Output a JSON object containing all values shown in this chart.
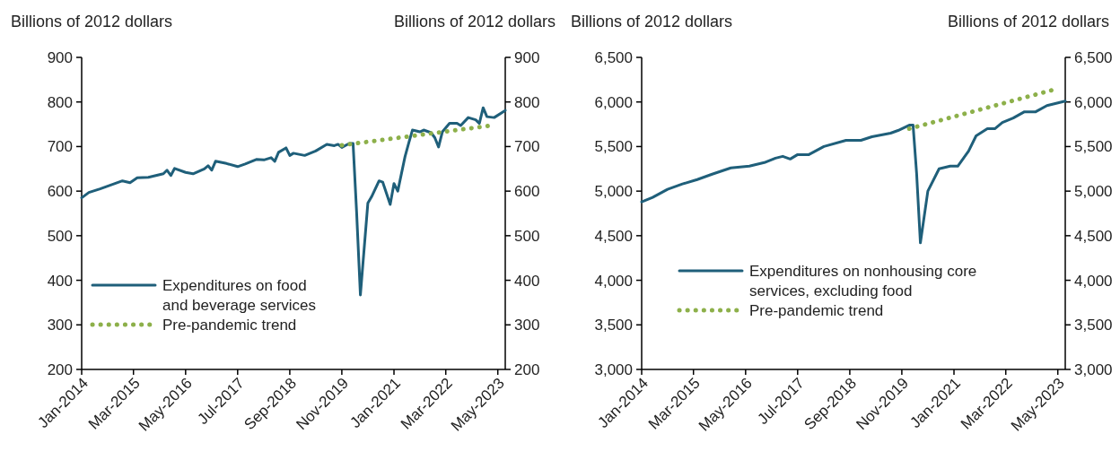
{
  "chart_data": [
    {
      "type": "line",
      "ylabel": "Billions of 2012 dollars",
      "y2label": "Billions of 2012 dollars",
      "xlim": [
        "2014-01",
        "2023-07"
      ],
      "xticks": [
        {
          "value": "2014-01",
          "label": "Jan-2014"
        },
        {
          "value": "2015-03",
          "label": "Mar-2015"
        },
        {
          "value": "2016-05",
          "label": "May-2016"
        },
        {
          "value": "2017-07",
          "label": "Jul-2017"
        },
        {
          "value": "2018-09",
          "label": "Sep-2018"
        },
        {
          "value": "2019-11",
          "label": "Nov-2019"
        },
        {
          "value": "2021-01",
          "label": "Jan-2021"
        },
        {
          "value": "2022-03",
          "label": "Mar-2022"
        },
        {
          "value": "2023-05",
          "label": "May-2023"
        }
      ],
      "ylim": [
        200,
        900
      ],
      "yticks": [
        200,
        300,
        400,
        500,
        600,
        700,
        800,
        900
      ],
      "y2lim": [
        200,
        900
      ],
      "y2ticks": [
        200,
        300,
        400,
        500,
        600,
        700,
        800,
        900
      ],
      "grid": false,
      "legend": "bottom left",
      "series": [
        {
          "name": "Expenditures on food and beverage services",
          "color": "#1f5f7a",
          "line_style": "solid",
          "x": [
            "2014-01",
            "2014-03",
            "2014-06",
            "2014-10",
            "2014-12",
            "2015-02",
            "2015-04",
            "2015-07",
            "2015-11",
            "2015-12",
            "2016-01",
            "2016-02",
            "2016-05",
            "2016-07",
            "2016-10",
            "2016-11",
            "2016-12",
            "2017-01",
            "2017-04",
            "2017-07",
            "2017-09",
            "2017-12",
            "2018-02",
            "2018-04",
            "2018-05",
            "2018-06",
            "2018-08",
            "2018-09",
            "2018-10",
            "2019-01",
            "2019-04",
            "2019-07",
            "2019-09",
            "2019-10",
            "2019-11",
            "2020-01",
            "2020-02",
            "2020-03",
            "2020-04",
            "2020-06",
            "2020-07",
            "2020-09",
            "2020-10",
            "2020-12",
            "2021-01",
            "2021-02",
            "2021-04",
            "2021-05",
            "2021-06",
            "2021-08",
            "2021-09",
            "2021-11",
            "2021-12",
            "2022-01",
            "2022-02",
            "2022-04",
            "2022-06",
            "2022-07",
            "2022-09",
            "2022-11",
            "2022-12",
            "2023-01",
            "2023-02",
            "2023-04",
            "2023-07"
          ],
          "values": [
            585,
            597,
            605,
            617,
            623,
            619,
            630,
            631,
            639,
            647,
            635,
            651,
            642,
            639,
            650,
            657,
            647,
            667,
            662,
            655,
            661,
            671,
            670,
            675,
            667,
            687,
            697,
            680,
            685,
            680,
            690,
            705,
            702,
            705,
            698,
            707,
            707,
            553,
            367,
            573,
            587,
            623,
            620,
            570,
            617,
            600,
            677,
            707,
            737,
            733,
            737,
            731,
            720,
            699,
            733,
            752,
            752,
            747,
            765,
            760,
            752,
            787,
            767,
            765,
            781
          ]
        },
        {
          "name": "Pre-pandemic trend",
          "color": "#8db04a",
          "line_style": "dotted",
          "x": [
            "2019-11",
            "2023-04"
          ],
          "values": [
            703,
            748
          ]
        }
      ]
    },
    {
      "type": "line",
      "ylabel": "Billions of 2012 dollars",
      "y2label": "Billions of 2012 dollars",
      "xlim": [
        "2014-01",
        "2023-07"
      ],
      "xticks": [
        {
          "value": "2014-01",
          "label": "Jan-2014"
        },
        {
          "value": "2015-03",
          "label": "Mar-2015"
        },
        {
          "value": "2016-05",
          "label": "May-2016"
        },
        {
          "value": "2017-07",
          "label": "Jul-2017"
        },
        {
          "value": "2018-09",
          "label": "Sep-2018"
        },
        {
          "value": "2019-11",
          "label": "Nov-2019"
        },
        {
          "value": "2021-01",
          "label": "Jan-2021"
        },
        {
          "value": "2022-03",
          "label": "Mar-2022"
        },
        {
          "value": "2023-05",
          "label": "May-2023"
        }
      ],
      "ylim": [
        3000,
        6500
      ],
      "yticks": [
        {
          "value": 3000,
          "label": "3,000"
        },
        {
          "value": 3500,
          "label": "3,500"
        },
        {
          "value": 4000,
          "label": "4,000"
        },
        {
          "value": 4500,
          "label": "4,500"
        },
        {
          "value": 5000,
          "label": "5,000"
        },
        {
          "value": 5500,
          "label": "5,500"
        },
        {
          "value": 6000,
          "label": "6,000"
        },
        {
          "value": 6500,
          "label": "6,500"
        }
      ],
      "y2lim": [
        3000,
        6500
      ],
      "y2ticks": [
        {
          "value": 3000,
          "label": "3,000"
        },
        {
          "value": 3500,
          "label": "3,500"
        },
        {
          "value": 4000,
          "label": "4,000"
        },
        {
          "value": 4500,
          "label": "4,500"
        },
        {
          "value": 5000,
          "label": "5,000"
        },
        {
          "value": 5500,
          "label": "5,500"
        },
        {
          "value": 6000,
          "label": "6,000"
        },
        {
          "value": 6500,
          "label": "6,500"
        }
      ],
      "grid": false,
      "legend": "bottom left",
      "series": [
        {
          "name": "Expenditures on nonhousing core services, excluding food",
          "color": "#1f5f7a",
          "line_style": "solid",
          "x": [
            "2014-01",
            "2014-04",
            "2014-08",
            "2014-12",
            "2015-04",
            "2015-08",
            "2016-01",
            "2016-06",
            "2016-10",
            "2017-01",
            "2017-03",
            "2017-05",
            "2017-07",
            "2017-10",
            "2018-02",
            "2018-08",
            "2018-12",
            "2019-03",
            "2019-08",
            "2019-10",
            "2020-01",
            "2020-02",
            "2020-03",
            "2020-04",
            "2020-06",
            "2020-09",
            "2020-12",
            "2021-02",
            "2021-05",
            "2021-07",
            "2021-10",
            "2021-12",
            "2022-02",
            "2022-05",
            "2022-08",
            "2022-11",
            "2023-02",
            "2023-07"
          ],
          "values": [
            4880,
            4930,
            5020,
            5080,
            5130,
            5190,
            5260,
            5280,
            5320,
            5370,
            5390,
            5360,
            5410,
            5410,
            5500,
            5570,
            5570,
            5610,
            5650,
            5680,
            5740,
            5740,
            5200,
            4420,
            5000,
            5250,
            5280,
            5280,
            5450,
            5620,
            5700,
            5700,
            5770,
            5820,
            5890,
            5890,
            5960,
            6010
          ]
        },
        {
          "name": "Pre-pandemic trend",
          "color": "#8db04a",
          "line_style": "dotted",
          "x": [
            "2020-01",
            "2023-05"
          ],
          "values": [
            5700,
            6150
          ]
        }
      ]
    }
  ]
}
